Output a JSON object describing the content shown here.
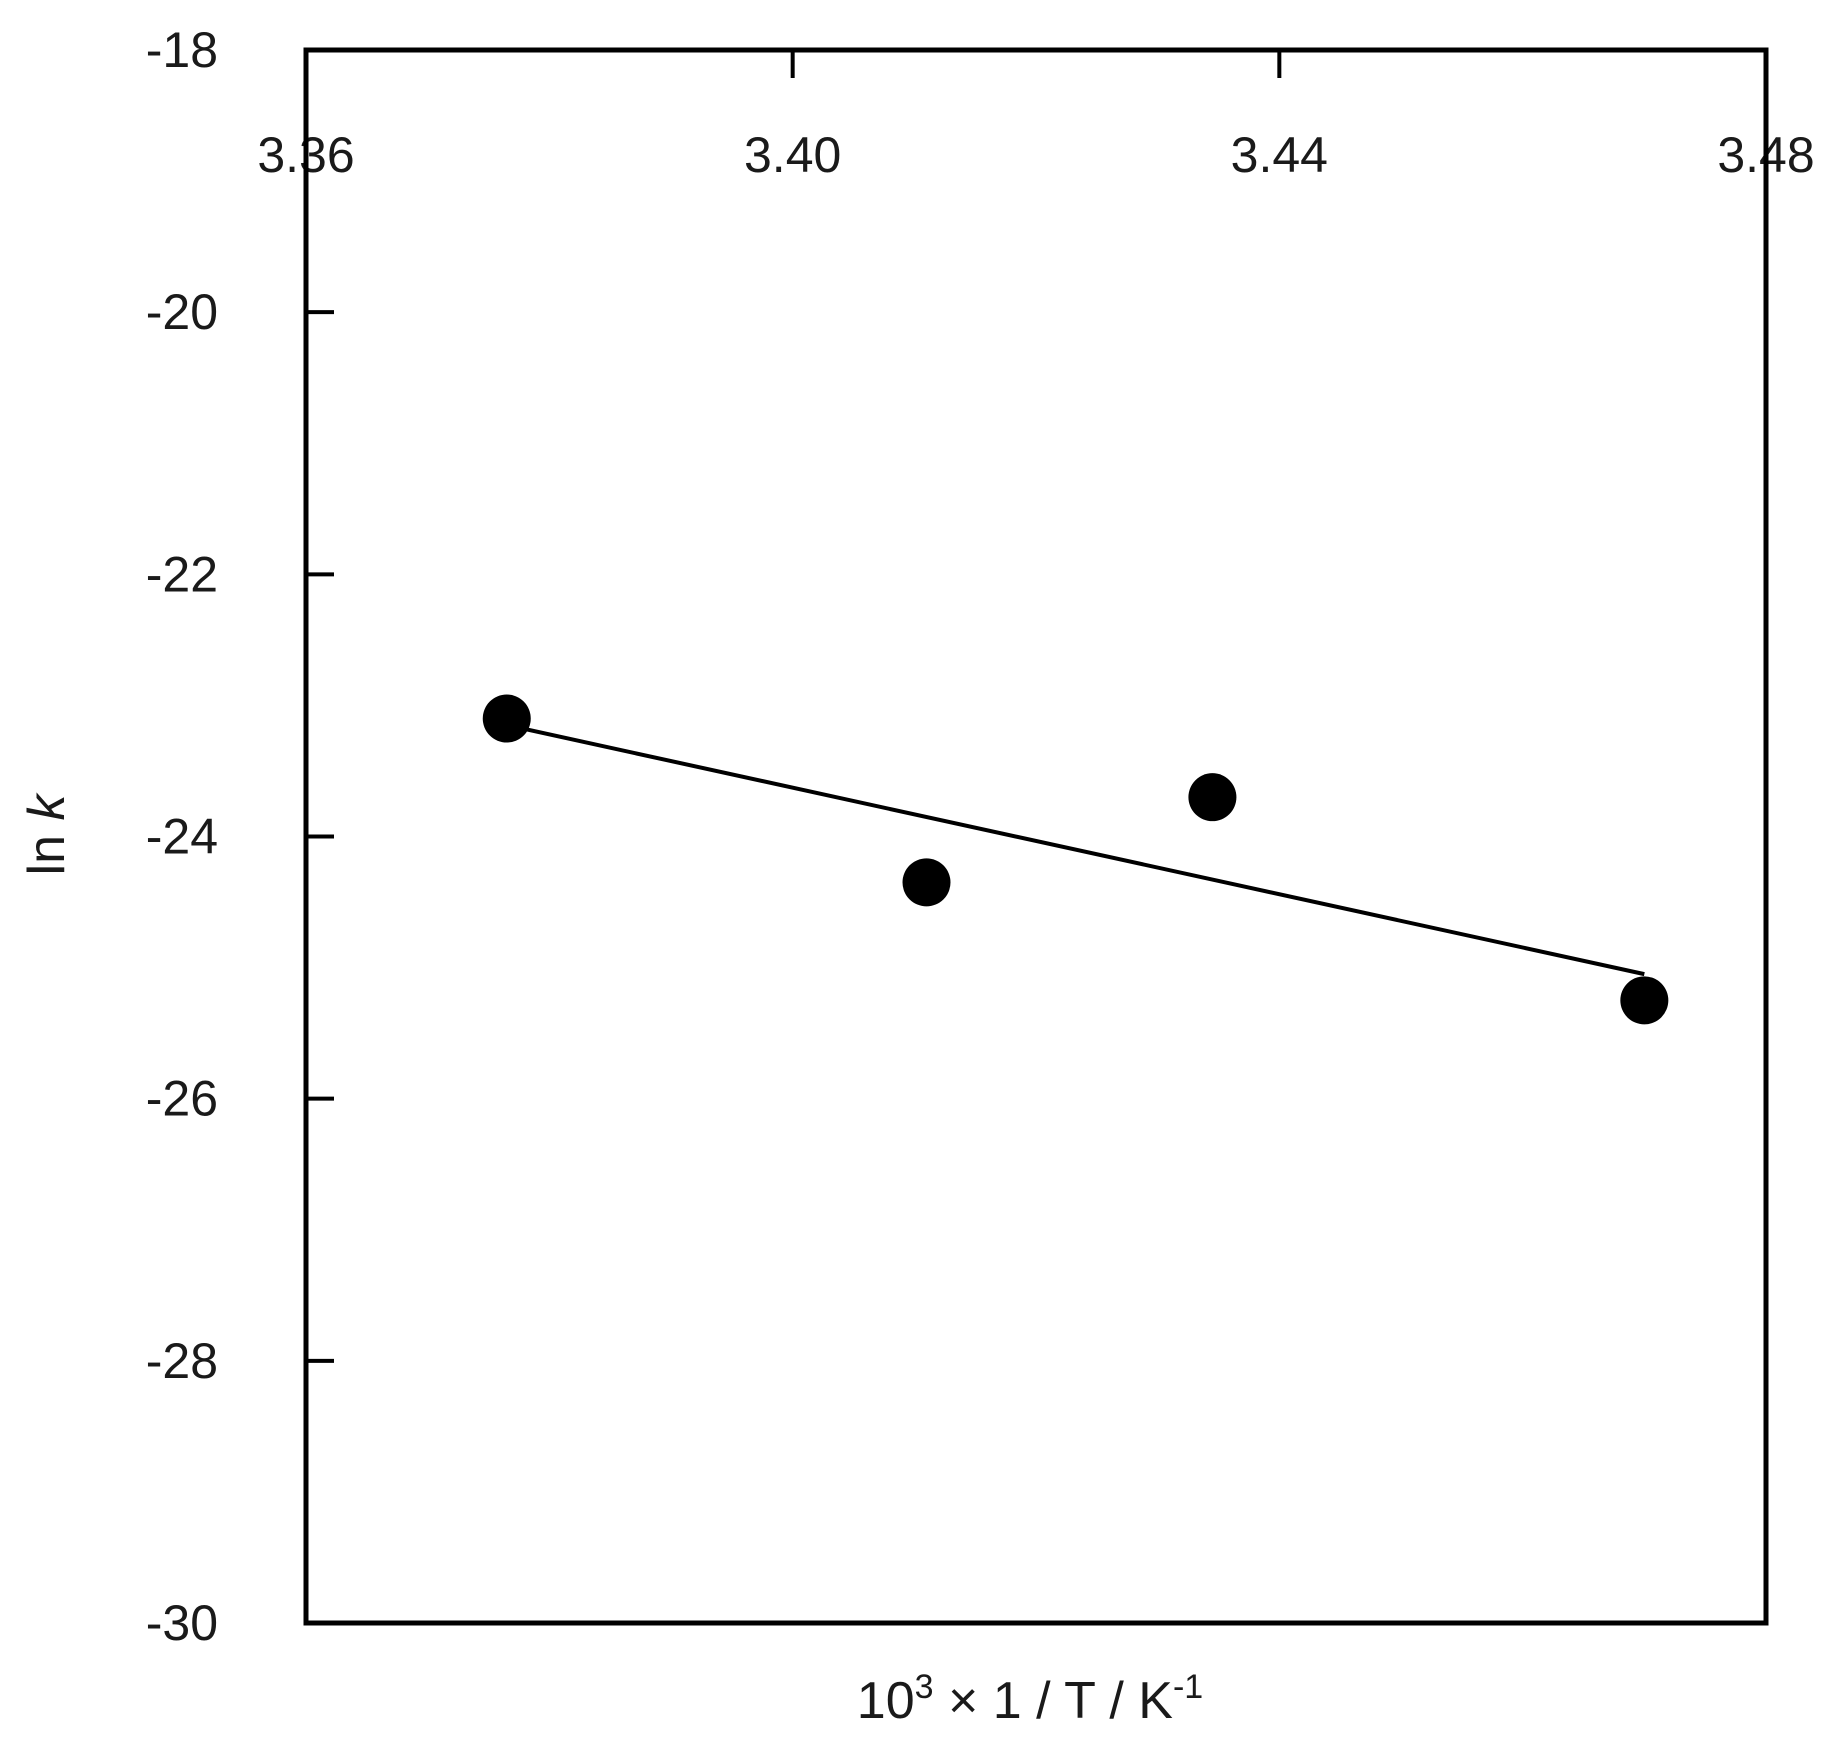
{
  "chart_data": {
    "type": "scatter",
    "xlabel": {
      "base": "10",
      "exp": "3",
      "middle": " × 1 / T / K",
      "unit_exp": "-1"
    },
    "ylabel": {
      "prefix": "ln ",
      "var": "k"
    },
    "xlim": [
      3.36,
      3.48
    ],
    "ylim": [
      -30,
      -18
    ],
    "x_ticks": [
      3.36,
      3.4,
      3.44,
      3.48
    ],
    "x_tick_labels": [
      "3.36",
      "3.40",
      "3.44",
      "3.48"
    ],
    "x_axis_position": "top",
    "y_ticks": [
      -18,
      -20,
      -22,
      -24,
      -26,
      -28,
      -30
    ],
    "y_tick_labels": [
      "-18",
      "-20",
      "-22",
      "-24",
      "-26",
      "-28",
      "-30"
    ],
    "grid": false,
    "legend": "none",
    "series": [
      {
        "points": [
          {
            "x": 3.3765,
            "y": -23.1
          },
          {
            "x": 3.411,
            "y": -24.35
          },
          {
            "x": 3.4345,
            "y": -23.7
          },
          {
            "x": 3.47,
            "y": -25.25
          }
        ],
        "color": "#000000"
      }
    ],
    "fit_line": {
      "x": [
        3.3765,
        3.47
      ],
      "y": [
        -23.15,
        -25.05
      ],
      "color": "#000000"
    }
  }
}
